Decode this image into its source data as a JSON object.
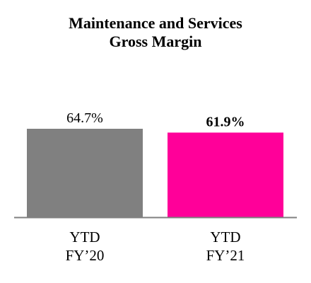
{
  "chart_data": {
    "type": "bar",
    "title_lines": [
      "Maintenance and Services",
      "Gross Margin"
    ],
    "categories": [
      {
        "lines": [
          "YTD",
          "FY’20"
        ]
      },
      {
        "lines": [
          "YTD",
          "FY’21"
        ]
      }
    ],
    "values": [
      64.7,
      61.9
    ],
    "value_labels": [
      "64.7%",
      "61.9%"
    ],
    "value_label_bold": [
      false,
      true
    ],
    "colors": [
      "#808080",
      "#ff0099"
    ],
    "xlabel": "",
    "ylabel": "",
    "ylim": [
      0,
      64.7
    ],
    "grid": false,
    "legend": "none"
  }
}
